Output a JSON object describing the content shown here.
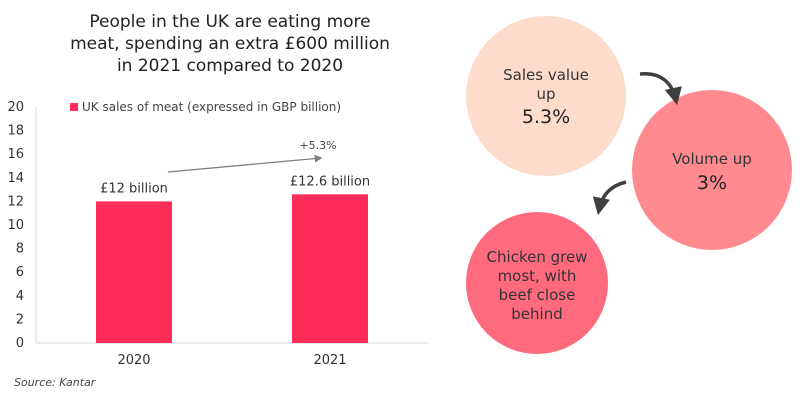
{
  "title_lines": [
    "People in the UK are eating more",
    "meat, spending an extra £600 million",
    "in 2021 compared to 2020"
  ],
  "source": "Source: Kantar",
  "chart_data": {
    "type": "bar",
    "categories": [
      "2020",
      "2021"
    ],
    "series": [
      {
        "name": "UK sales of meat (expressed in GBP billion)",
        "values": [
          12,
          12.6
        ],
        "color": "#FF2D5A"
      }
    ],
    "data_labels": [
      "£12 billion",
      "£12.6 billion"
    ],
    "ylim": [
      0,
      20
    ],
    "yticks": [
      0,
      2,
      4,
      6,
      8,
      10,
      12,
      14,
      16,
      18,
      20
    ],
    "grid": false,
    "legend": "top-left",
    "annotation": "+5.3%"
  },
  "circles": [
    {
      "lines": [
        "Sales value",
        "up"
      ],
      "highlight": "5.3%",
      "color": "#FDDCCB"
    },
    {
      "lines": [
        "Volume up"
      ],
      "highlight": "3%",
      "color": "#FF8A90"
    },
    {
      "lines": [
        "Chicken grew",
        "most, with",
        "beef close",
        "behind"
      ],
      "highlight": "",
      "color": "#FF6A7E"
    }
  ]
}
